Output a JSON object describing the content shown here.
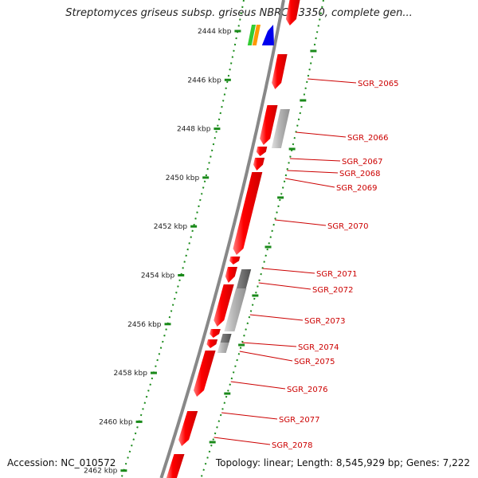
{
  "title": "Streptomyces griseus subsp. griseus NBRC 13350, complete gen...",
  "footer": {
    "accession": "Accession: NC_010572",
    "topology": "Topology: linear; Length: 8,545,929 bp; Genes: 7,222"
  },
  "axis_ticks": [
    "2444 kbp",
    "2446 kbp",
    "2448 kbp",
    "2450 kbp",
    "2452 kbp",
    "2454 kbp",
    "2456 kbp",
    "2458 kbp",
    "2460 kbp",
    "2462 kbp"
  ],
  "gene_labels": [
    "SGR_2065",
    "SGR_2066",
    "SGR_2067",
    "SGR_2068",
    "SGR_2069",
    "SGR_2070",
    "SGR_2071",
    "SGR_2072",
    "SGR_2073",
    "SGR_2074",
    "SGR_2075",
    "SGR_2076",
    "SGR_2077",
    "SGR_2078"
  ],
  "colors": {
    "gene_forward": "#ff0000",
    "gene_grey": "#b0b0b0",
    "gene_dark": "#606060",
    "label": "#cc0000",
    "track_dots": "#1a8a1a",
    "chromosome": "#888888",
    "feature_green": "#33cc33",
    "feature_orange": "#ff9900",
    "feature_blue": "#0000ee"
  }
}
